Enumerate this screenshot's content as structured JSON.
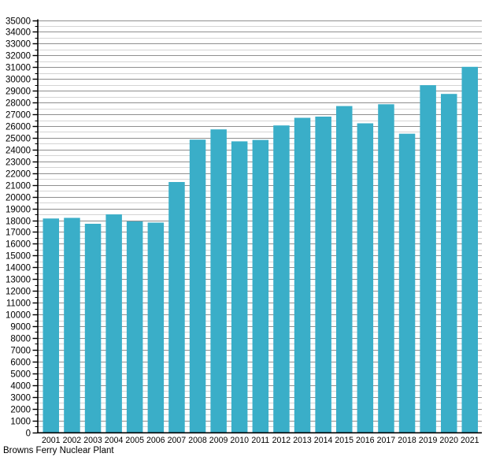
{
  "caption": "Browns Ferry Nuclear Plant",
  "chart_data": {
    "type": "bar",
    "title": "",
    "xlabel": "Browns Ferry Nuclear Plant",
    "ylabel": "",
    "categories": [
      "2001",
      "2002",
      "2003",
      "2004",
      "2005",
      "2006",
      "2007",
      "2008",
      "2009",
      "2010",
      "2011",
      "2012",
      "2013",
      "2014",
      "2015",
      "2016",
      "2017",
      "2018",
      "2019",
      "2020",
      "2021"
    ],
    "values": [
      18150,
      18200,
      17700,
      18500,
      17900,
      17800,
      21250,
      24850,
      25720,
      24700,
      24820,
      26050,
      26700,
      26800,
      27700,
      26230,
      27850,
      25350,
      29470,
      28730,
      31030
    ],
    "ylim": [
      0,
      35000
    ],
    "y_major_step": 1000,
    "y_minor_step": 500,
    "y_tick_labels": [
      "0",
      "1000",
      "2000",
      "3000",
      "4000",
      "5000",
      "6000",
      "7000",
      "8000",
      "9000",
      "10000",
      "11000",
      "12000",
      "13000",
      "14000",
      "15000",
      "16000",
      "17000",
      "18000",
      "19000",
      "20000",
      "21000",
      "22000",
      "23000",
      "24000",
      "25000",
      "26000",
      "27000",
      "28000",
      "29000",
      "30000",
      "31000",
      "32000",
      "33000",
      "34000",
      "35000"
    ],
    "grid": "on",
    "legend_position": "none",
    "colors": {
      "bar": "#3aaec8",
      "major_grid": "#8f8f8f",
      "minor_grid": "#d4d4d4",
      "axis": "#000000",
      "text": "#000000",
      "background": "#ffffff"
    }
  }
}
